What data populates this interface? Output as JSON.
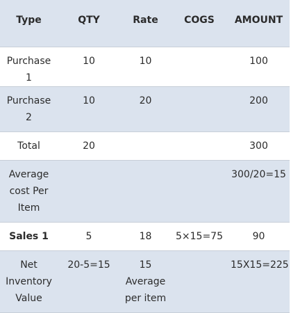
{
  "table": {
    "headers": [
      "Type",
      "QTY",
      "Rate",
      "COGS",
      "AMOUNT"
    ],
    "rows": [
      {
        "type": "Purchase 1",
        "qty": "10",
        "rate": "10",
        "cogs": "",
        "amount": "100"
      },
      {
        "type": "Purchase 2",
        "qty": "10",
        "rate": "20",
        "cogs": "",
        "amount": "200"
      },
      {
        "type": "Total",
        "qty": "20",
        "rate": "",
        "cogs": "",
        "amount": "300"
      },
      {
        "type": "Average cost Per Item",
        "qty": "",
        "rate": "",
        "cogs": "",
        "amount": "300/20=15"
      },
      {
        "type": "Sales 1",
        "qty": "5",
        "rate": "18",
        "cogs": "5×15=75",
        "amount": "90"
      },
      {
        "type": "Net Inventory Value",
        "qty": "20-5=15",
        "rate": "15 Average per item",
        "cogs": "",
        "amount": "15X15=225"
      }
    ]
  },
  "colors": {
    "header_bg": "#dbe3ee",
    "band_bg": "#dbe3ee",
    "row_bg": "#ffffff",
    "rule": "#c7ced8",
    "text": "#2b2b2b"
  }
}
